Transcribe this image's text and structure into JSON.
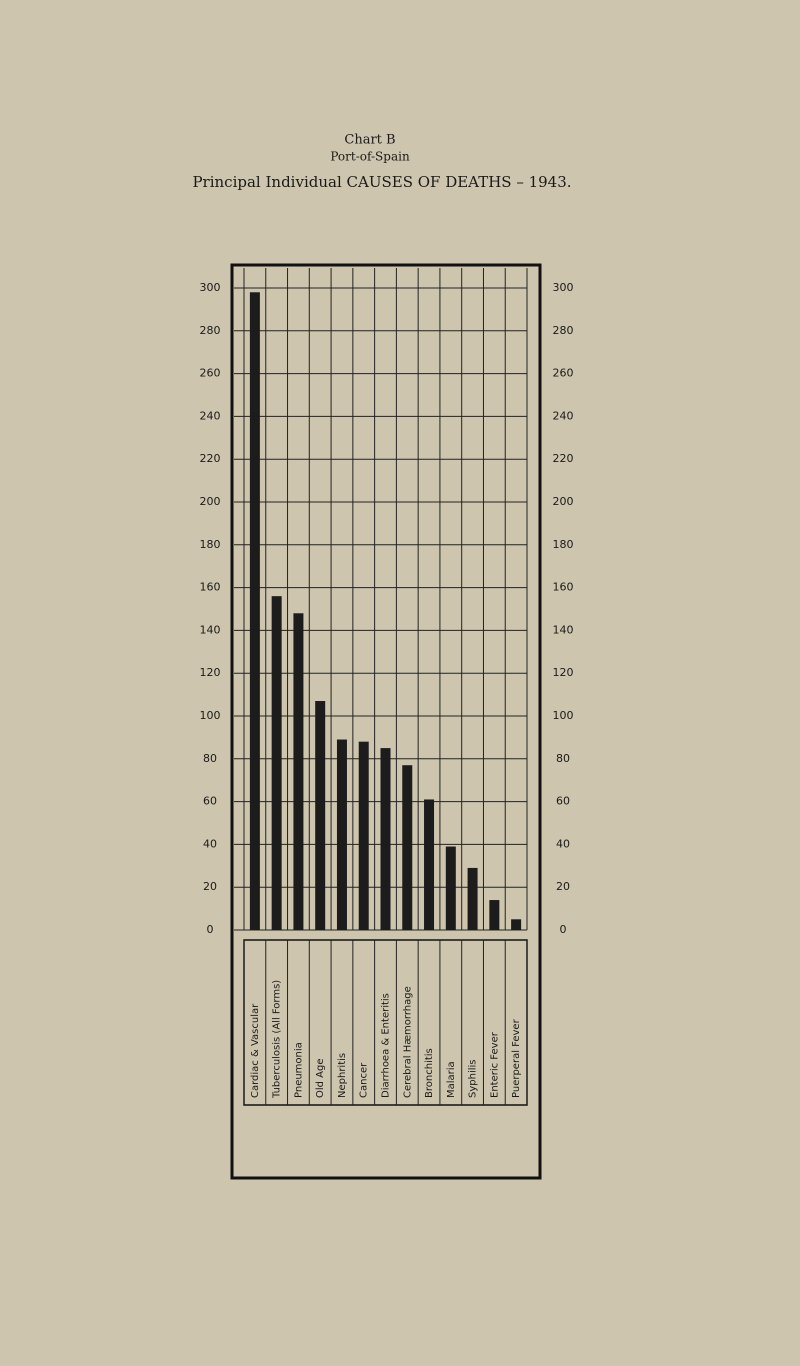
{
  "chart_data": {
    "type": "bar",
    "chart_label": "Chart B",
    "subtitle": "Port-of-Spain",
    "title": "Principal Individual CAUSES OF DEATHS – 1943.",
    "categories": [
      "Cardiac & Vascular",
      "Tuberculosis (All Forms)",
      "Pneumonia",
      "Old Age",
      "Nephritis",
      "Cancer",
      "Diarrhoea & Enteritis",
      "Cerebral Hæmorrhage",
      "Bronchitis",
      "Malaria",
      "Syphilis",
      "Enteric Fever",
      "Puerperal Fever"
    ],
    "values": [
      298,
      156,
      148,
      107,
      89,
      88,
      85,
      77,
      61,
      39,
      29,
      14,
      5
    ],
    "color": "#1c1c1c",
    "ylim": [
      0,
      300
    ],
    "yticks": [
      0,
      20,
      40,
      60,
      80,
      100,
      120,
      140,
      160,
      180,
      200,
      220,
      240,
      260,
      280,
      300
    ],
    "grid": true
  }
}
